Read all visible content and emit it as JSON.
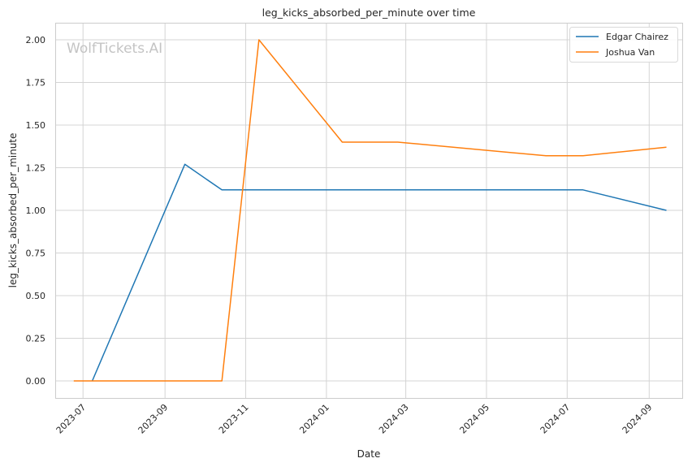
{
  "watermark": "WolfTickets.AI",
  "chart_data": {
    "type": "line",
    "title": "leg_kicks_absorbed_per_minute over time",
    "xlabel": "Date",
    "ylabel": "leg_kicks_absorbed_per_minute",
    "x_ticks": [
      "2023-07",
      "2023-09",
      "2023-11",
      "2024-01",
      "2024-03",
      "2024-05",
      "2024-07",
      "2024-09"
    ],
    "y_ticks": [
      "0.00",
      "0.25",
      "0.50",
      "0.75",
      "1.00",
      "1.25",
      "1.50",
      "1.75",
      "2.00"
    ],
    "xlim": [
      "2023-06-10",
      "2024-09-26"
    ],
    "ylim": [
      -0.1,
      2.1
    ],
    "grid": true,
    "legend_position": "top-right",
    "series": [
      {
        "name": "Edgar Chairez",
        "color": "#1f77b4",
        "x": [
          "2023-07-08",
          "2023-09-16",
          "2023-10-14",
          "2024-07-13",
          "2024-09-14"
        ],
        "y": [
          0.0,
          1.27,
          1.12,
          1.12,
          1.0
        ]
      },
      {
        "name": "Joshua Van",
        "color": "#ff7f0e",
        "x": [
          "2023-06-24",
          "2023-10-14",
          "2023-11-11",
          "2024-01-13",
          "2024-02-24",
          "2024-06-15",
          "2024-07-13",
          "2024-09-14"
        ],
        "y": [
          0.0,
          0.0,
          2.0,
          1.4,
          1.4,
          1.32,
          1.32,
          1.37
        ]
      }
    ]
  }
}
